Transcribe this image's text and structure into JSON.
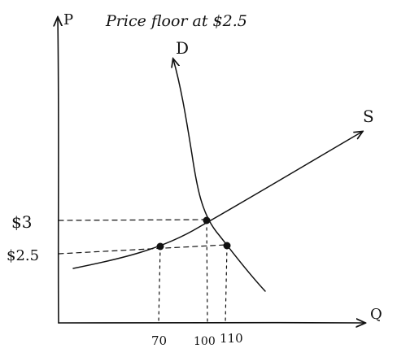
{
  "title": "Price floor at $2.5",
  "axes": {
    "y_label": "P",
    "x_label": "Q"
  },
  "curves": {
    "demand_label": "D",
    "supply_label": "S"
  },
  "price_ticks": [
    "$3",
    "$2.5"
  ],
  "quantity_ticks": [
    "70",
    "100",
    "110"
  ],
  "colors": {
    "ink": "#111111",
    "background": "#ffffff"
  }
}
